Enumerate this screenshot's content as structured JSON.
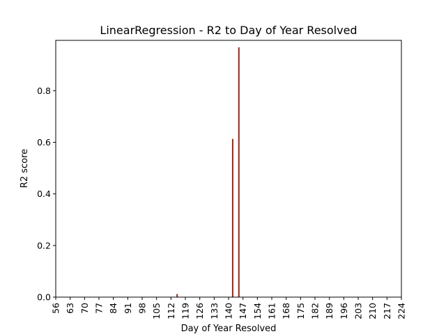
{
  "chart_data": {
    "type": "bar",
    "title": "LinearRegression - R2 to Day of Year Resolved",
    "xlabel": "Day of Year Resolved",
    "ylabel": "R2 score",
    "xlim": [
      56,
      224
    ],
    "ylim": [
      0,
      0.995
    ],
    "xticks": [
      56,
      63,
      70,
      77,
      84,
      91,
      98,
      105,
      112,
      119,
      126,
      133,
      140,
      147,
      154,
      161,
      168,
      175,
      182,
      189,
      196,
      203,
      210,
      217,
      224
    ],
    "yticks": [
      0.0,
      0.2,
      0.4,
      0.6,
      0.8
    ],
    "ytick_labels": [
      "0.0",
      "0.2",
      "0.4",
      "0.6",
      "0.8"
    ],
    "bar_color": "#8b2a1f",
    "grid": false,
    "points": [
      {
        "x": 115,
        "y": 0.012
      },
      {
        "x": 142,
        "y": 0.613
      },
      {
        "x": 145,
        "y": 0.968
      }
    ]
  }
}
